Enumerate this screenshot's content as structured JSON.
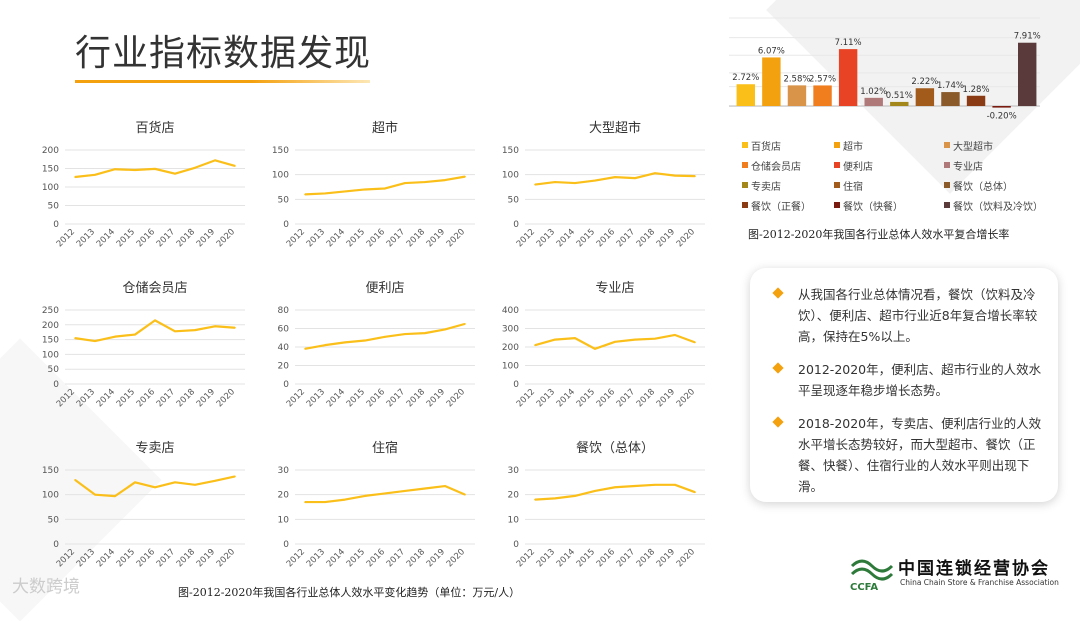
{
  "title": "行业指标数据发现",
  "bottom_caption": "图-2012-2020年我国各行业总体人效水平变化趋势（单位：万元/人）",
  "bar_caption": "图-2012-2020年我国各行业总体人效水平复合增长率",
  "findings": [
    "从我国各行业总体情况看，餐饮（饮料及冷饮）、便利店、超市行业近8年复合增长率较高，保持在5%以上。",
    "2012-2020年，便利店、超市行业的人效水平呈现逐年稳步增长态势。",
    "2018-2020年，专卖店、便利店行业的人效水平增长态势较好，而大型超市、餐饮（正餐、快餐）、住宿行业的人效水平则出现下滑。"
  ],
  "logo": {
    "cn": "中国连锁经营协会",
    "abbr": "CCFA",
    "en": "China Chain Store & Franchise Association"
  },
  "watermark": "大数跨境",
  "colors": {
    "accent": "#f4a10f",
    "line": "#fbbf1a"
  },
  "chart_data": [
    {
      "type": "line",
      "title": "百货店",
      "x": [
        "2012",
        "2013",
        "2014",
        "2015",
        "2016",
        "2017",
        "2018",
        "2019",
        "2020"
      ],
      "values": [
        127,
        133,
        148,
        146,
        149,
        136,
        152,
        172,
        157
      ],
      "ylim": [
        0,
        200
      ],
      "yticks": [
        0,
        50,
        100,
        150,
        200
      ],
      "grid": true
    },
    {
      "type": "line",
      "title": "超市",
      "x": [
        "2012",
        "2013",
        "2014",
        "2015",
        "2016",
        "2017",
        "2018",
        "2019",
        "2020"
      ],
      "values": [
        60,
        62,
        66,
        70,
        72,
        83,
        85,
        89,
        96
      ],
      "ylim": [
        0,
        150
      ],
      "yticks": [
        0,
        50,
        100,
        150
      ],
      "grid": true
    },
    {
      "type": "line",
      "title": "大型超市",
      "x": [
        "2012",
        "2013",
        "2014",
        "2015",
        "2016",
        "2017",
        "2018",
        "2019",
        "2020"
      ],
      "values": [
        80,
        85,
        83,
        88,
        95,
        93,
        103,
        98,
        97
      ],
      "ylim": [
        0,
        150
      ],
      "yticks": [
        0,
        50,
        100,
        150
      ],
      "grid": true
    },
    {
      "type": "line",
      "title": "仓储会员店",
      "x": [
        "2012",
        "2013",
        "2014",
        "2015",
        "2016",
        "2017",
        "2018",
        "2019",
        "2020"
      ],
      "values": [
        155,
        145,
        160,
        167,
        215,
        178,
        182,
        195,
        190
      ],
      "ylim": [
        0,
        250
      ],
      "yticks": [
        0,
        50,
        100,
        150,
        200,
        250
      ],
      "grid": true
    },
    {
      "type": "line",
      "title": "便利店",
      "x": [
        "2012",
        "2013",
        "2014",
        "2015",
        "2016",
        "2017",
        "2018",
        "2019",
        "2020"
      ],
      "values": [
        38,
        42,
        45,
        47,
        51,
        54,
        55,
        59,
        65
      ],
      "ylim": [
        0,
        80
      ],
      "yticks": [
        0,
        20,
        40,
        60,
        80
      ],
      "grid": true
    },
    {
      "type": "line",
      "title": "专业店",
      "x": [
        "2012",
        "2013",
        "2014",
        "2015",
        "2016",
        "2017",
        "2018",
        "2019",
        "2020"
      ],
      "values": [
        210,
        240,
        248,
        190,
        228,
        240,
        245,
        265,
        225
      ],
      "ylim": [
        0,
        400
      ],
      "yticks": [
        0,
        100,
        200,
        300,
        400
      ],
      "grid": true
    },
    {
      "type": "line",
      "title": "专卖店",
      "x": [
        "2012",
        "2013",
        "2014",
        "2015",
        "2016",
        "2017",
        "2018",
        "2019",
        "2020"
      ],
      "values": [
        130,
        100,
        97,
        125,
        115,
        125,
        120,
        128,
        137
      ],
      "ylim": [
        0,
        150
      ],
      "yticks": [
        0,
        50,
        100,
        150
      ],
      "grid": true
    },
    {
      "type": "line",
      "title": "住宿",
      "x": [
        "2012",
        "2013",
        "2014",
        "2015",
        "2016",
        "2017",
        "2018",
        "2019",
        "2020"
      ],
      "values": [
        17,
        17,
        18,
        19.5,
        20.5,
        21.5,
        22.5,
        23.5,
        20
      ],
      "ylim": [
        0,
        30
      ],
      "yticks": [
        0,
        10,
        20,
        30
      ],
      "grid": true
    },
    {
      "type": "line",
      "title": "餐饮（总体）",
      "x": [
        "2012",
        "2013",
        "2014",
        "2015",
        "2016",
        "2017",
        "2018",
        "2019",
        "2020"
      ],
      "values": [
        18,
        18.5,
        19.5,
        21.5,
        23,
        23.5,
        24,
        24,
        21
      ],
      "ylim": [
        0,
        30
      ],
      "yticks": [
        0,
        10,
        20,
        30
      ],
      "grid": true
    },
    {
      "type": "bar",
      "categories": [
        "百货店",
        "超市",
        "大型超市",
        "仓储会员店",
        "便利店",
        "专业店",
        "专卖店",
        "住宿",
        "餐饮（总体）",
        "餐饮（正餐）",
        "餐饮（快餐）",
        "餐饮（饮料及冷饮）"
      ],
      "values": [
        2.72,
        6.07,
        2.58,
        2.57,
        7.11,
        1.02,
        0.51,
        2.22,
        1.74,
        1.28,
        -0.2,
        7.91
      ],
      "labels": [
        "2.72%",
        "6.07%",
        "2.58%",
        "2.57%",
        "7.11%",
        "1.02%",
        "0.51%",
        "2.22%",
        "1.74%",
        "1.28%",
        "-0.20%",
        "7.91%"
      ],
      "colors": [
        "#fbbf1a",
        "#f4a10f",
        "#d9944a",
        "#f07d1e",
        "#e84324",
        "#b07979",
        "#a4871a",
        "#a35b1c",
        "#8b5a2a",
        "#8a3b14",
        "#7a1b0f",
        "#5a3a3a"
      ],
      "legend": "bottom",
      "grid": true
    }
  ]
}
